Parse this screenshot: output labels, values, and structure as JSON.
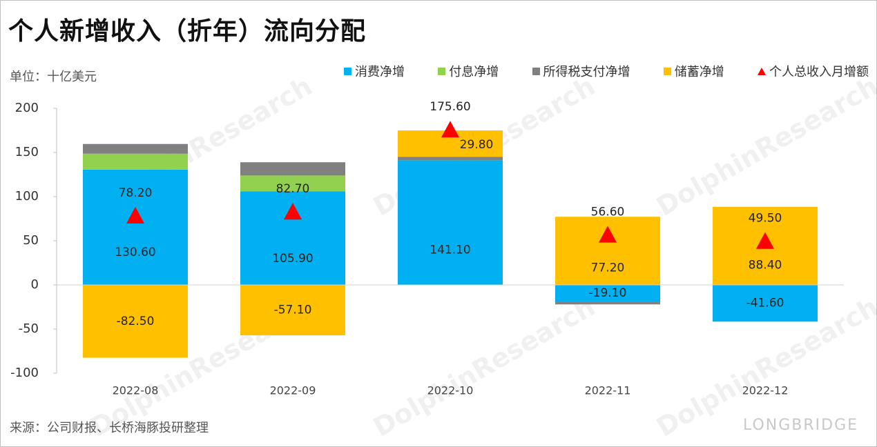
{
  "title": "个人新增收入（折年）流向分配",
  "unit_label": "单位：十亿美元",
  "source": "来源：公司财报、长桥海豚投研整理",
  "watermark": {
    "brand": "LONGBRIDGE",
    "text": "DolphinResearch"
  },
  "colors": {
    "consumption": "#00B0F0",
    "interest": "#92D050",
    "tax": "#808080",
    "savings": "#FFC000",
    "total": "#FF0000",
    "axis": "#bfbfbf",
    "zero_line": "#d0d0d0"
  },
  "legend": [
    {
      "name": "消费净增",
      "key": "consumption",
      "marker": "square"
    },
    {
      "name": "付息净增",
      "key": "interest",
      "marker": "square"
    },
    {
      "name": "所得税支付净增",
      "key": "tax",
      "marker": "square"
    },
    {
      "name": "储蓄净增",
      "key": "savings",
      "marker": "square"
    },
    {
      "name": "个人总收入月增额",
      "key": "total",
      "marker": "triangle"
    }
  ],
  "chart_data": {
    "type": "bar",
    "stacked": true,
    "categories": [
      "2022-08",
      "2022-09",
      "2022-10",
      "2022-11",
      "2022-12"
    ],
    "ylim": [
      -100,
      200
    ],
    "yticks": [
      -100,
      -50,
      0,
      50,
      100,
      150,
      200
    ],
    "grid": false,
    "legend_position": "top-right",
    "series": [
      {
        "name": "消费净增",
        "key": "consumption",
        "values": [
          130.6,
          105.9,
          141.1,
          -19.1,
          -41.6
        ],
        "labels": [
          "130.60",
          "105.90",
          "141.10",
          "-19.10",
          "-41.60"
        ]
      },
      {
        "name": "付息净增",
        "key": "interest",
        "values": [
          18,
          18,
          0,
          0,
          0
        ],
        "labels": [
          "",
          "",
          "",
          "",
          ""
        ]
      },
      {
        "name": "所得税支付净增",
        "key": "tax",
        "values": [
          11,
          15,
          4,
          -3,
          0
        ],
        "labels": [
          "",
          "",
          "",
          "",
          ""
        ]
      },
      {
        "name": "储蓄净增",
        "key": "savings",
        "values": [
          -82.5,
          -57.1,
          29.8,
          77.2,
          88.4
        ],
        "labels": [
          "-82.50",
          "-57.10",
          "29.80",
          "77.20",
          "88.40"
        ]
      }
    ],
    "total_series": {
      "name": "个人总收入月增额",
      "key": "total",
      "values": [
        78.2,
        82.7,
        175.6,
        56.6,
        49.5
      ],
      "labels": [
        "78.20",
        "82.70",
        "175.60",
        "56.60",
        "49.50"
      ]
    }
  }
}
